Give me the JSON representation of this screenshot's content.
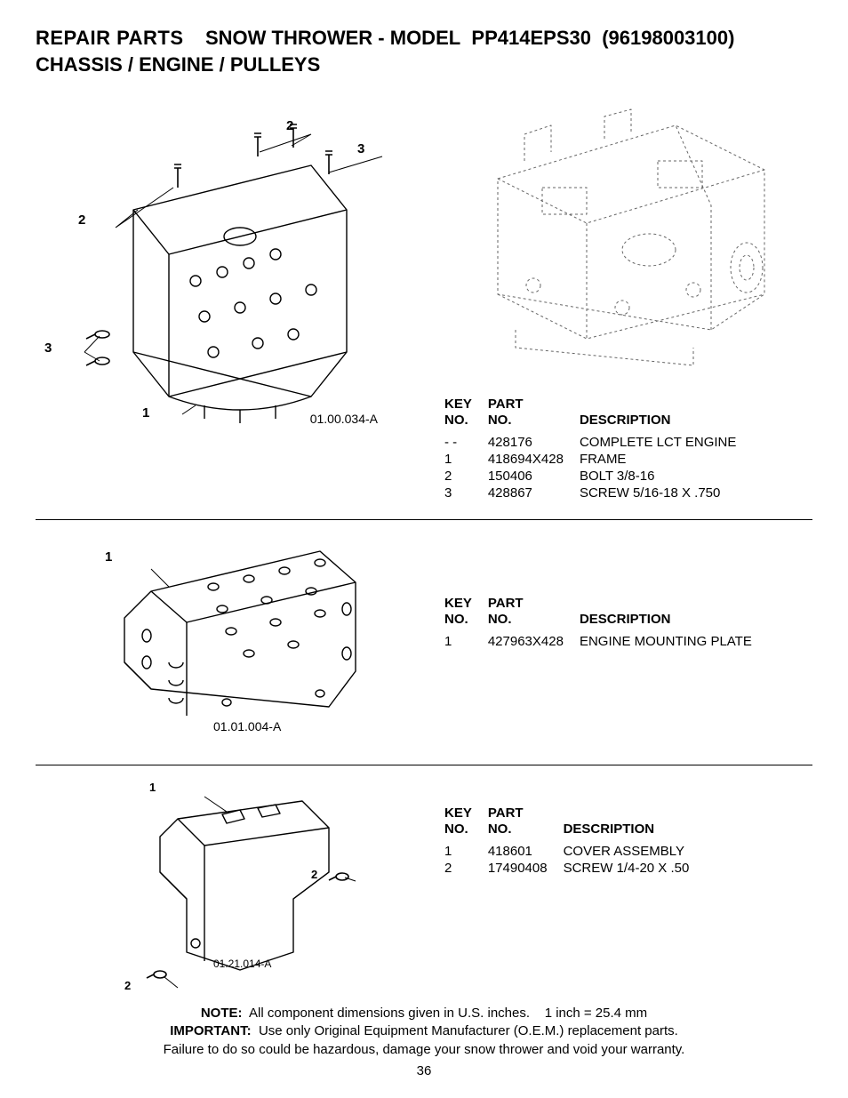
{
  "header": {
    "repair_parts": "REPAIR PARTS",
    "product_line": "SNOW THROWER - MODEL",
    "model_code": "PP414EPS30",
    "model_suffix": "(96198003100)",
    "subtitle": "CHASSIS / ENGINE / PULLEYS"
  },
  "table_headers": {
    "key_no": "KEY NO.",
    "part_no": "PART NO.",
    "description": "DESCRIPTION"
  },
  "section1": {
    "diagram_id": "01.00.034-A",
    "callouts": [
      "1",
      "2",
      "2",
      "3",
      "3"
    ],
    "rows": [
      {
        "key": "- -",
        "part": "428176",
        "desc": "COMPLETE LCT ENGINE"
      },
      {
        "key": "1",
        "part": "418694X428",
        "desc": "FRAME"
      },
      {
        "key": "2",
        "part": "150406",
        "desc": "BOLT 3/8-16"
      },
      {
        "key": "3",
        "part": "428867",
        "desc": "SCREW 5/16-18 X .750"
      }
    ]
  },
  "section2": {
    "diagram_id": "01.01.004-A",
    "callouts": [
      "1"
    ],
    "rows": [
      {
        "key": "1",
        "part": "427963X428",
        "desc": "ENGINE MOUNTING PLATE"
      }
    ]
  },
  "section3": {
    "diagram_id": "01.21.014-A",
    "callouts": [
      "1",
      "2",
      "2"
    ],
    "rows": [
      {
        "key": "1",
        "part": "418601",
        "desc": "COVER ASSEMBLY"
      },
      {
        "key": "2",
        "part": "17490408",
        "desc": "SCREW 1/4-20 X .50"
      }
    ]
  },
  "footer": {
    "note_label": "NOTE:",
    "note_text": "All component dimensions given in U.S. inches.",
    "note_conv": "1 inch = 25.4 mm",
    "imp_label": "IMPORTANT:",
    "imp_text": "Use only Original Equipment Manufacturer (O.E.M.) replacement parts.",
    "imp_text2": "Failure to do so could be hazardous, damage your snow thrower and void your warranty.",
    "page": "36"
  },
  "style": {
    "stroke": "#000000",
    "dash_stroke": "#888888",
    "stroke_width": 1.2
  }
}
